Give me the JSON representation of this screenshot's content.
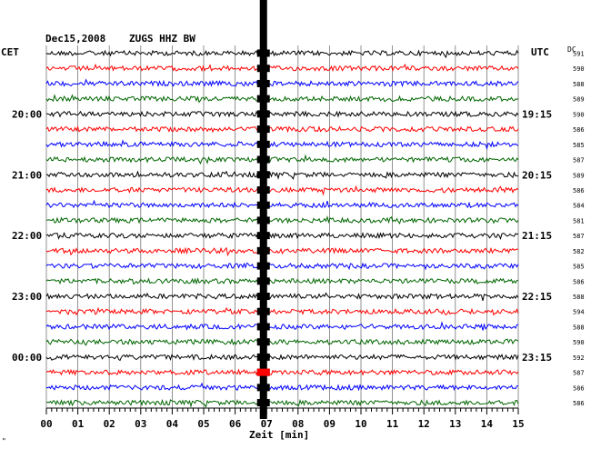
{
  "header": {
    "date": "Dec15,2008",
    "station": "ZUGS HHZ BW",
    "left_tz": "CET",
    "right_tz": "UTC",
    "dc_label": "DC"
  },
  "chart_data": {
    "type": "line",
    "title": "Dec15,2008   ZUGS HHZ BW",
    "xlabel": "Zeit [min]",
    "xlim": [
      0,
      15
    ],
    "x_ticks": [
      "00",
      "01",
      "02",
      "03",
      "04",
      "05",
      "06",
      "07",
      "08",
      "09",
      "10",
      "11",
      "12",
      "13",
      "14",
      "15"
    ],
    "left_hour_labels": [
      {
        "trace": 4,
        "label": "20:00"
      },
      {
        "trace": 8,
        "label": "21:00"
      },
      {
        "trace": 12,
        "label": "22:00"
      },
      {
        "trace": 16,
        "label": "23:00"
      },
      {
        "trace": 20,
        "label": "00:00"
      }
    ],
    "right_hour_labels": [
      {
        "trace": 4,
        "label": "19:15"
      },
      {
        "trace": 8,
        "label": "20:15"
      },
      {
        "trace": 12,
        "label": "21:15"
      },
      {
        "trace": 16,
        "label": "22:15"
      },
      {
        "trace": 20,
        "label": "23:15"
      }
    ],
    "trace_colors": [
      "#000000",
      "#ff0000",
      "#0000ff",
      "#006600"
    ],
    "dc_offsets": [
      591,
      590,
      588,
      589,
      590,
      586,
      585,
      587,
      589,
      586,
      584,
      581,
      587,
      582,
      585,
      586,
      588,
      594,
      588,
      590,
      592,
      587,
      586,
      586
    ],
    "event": {
      "minute": 6.9,
      "description": "large saturated signal across all traces"
    },
    "grid": true
  },
  "footer": {
    "corner_mark": "\""
  }
}
